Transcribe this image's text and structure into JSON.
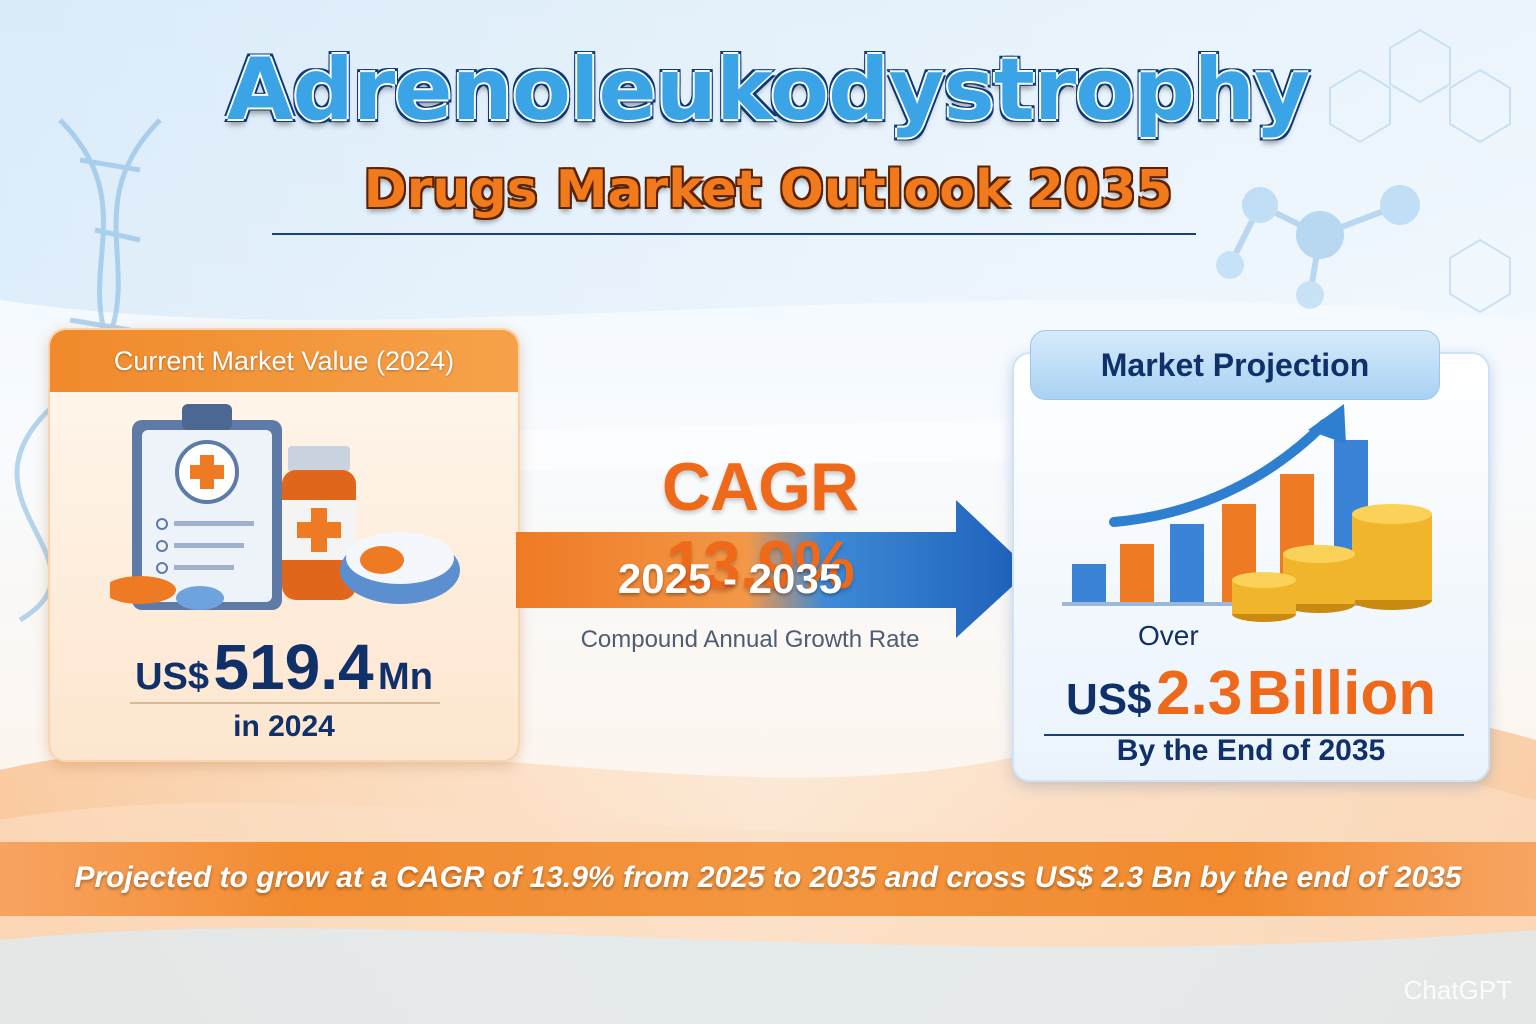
{
  "header": {
    "title": "Adrenoleukodystrophy",
    "subtitle": "Drugs Market Outlook 2035"
  },
  "current_market": {
    "label": "Current Market Value (2024)",
    "currency": "US$",
    "value": "519.4",
    "unit": "Mn",
    "year_text": "in 2024",
    "icons": [
      "clipboard-icon",
      "medicine-bottle-icon",
      "capsule-icon"
    ]
  },
  "cagr": {
    "headline": "CAGR 13.9%",
    "period": "2025 - 2035",
    "description": "Compound Annual Growth Rate",
    "icon": "arrow-right-icon"
  },
  "projection": {
    "label": "Market Projection",
    "prefix": "Over",
    "currency": "US$",
    "value": "2.3",
    "unit": "Billion",
    "end_text": "By the End of 2035",
    "icons": [
      "bar-chart-icon",
      "trend-arrow-icon",
      "coin-stack-icon"
    ]
  },
  "footer": {
    "banner_text": "Projected to grow at a CAGR of 13.9% from 2025 to 2035 and cross US$ 2.3 Bn by the end of 2035"
  },
  "watermark": "ChatGPT",
  "colors": {
    "accent_orange": "#f08a2c",
    "accent_blue": "#2f7fd0",
    "navy_text": "#10306a"
  }
}
